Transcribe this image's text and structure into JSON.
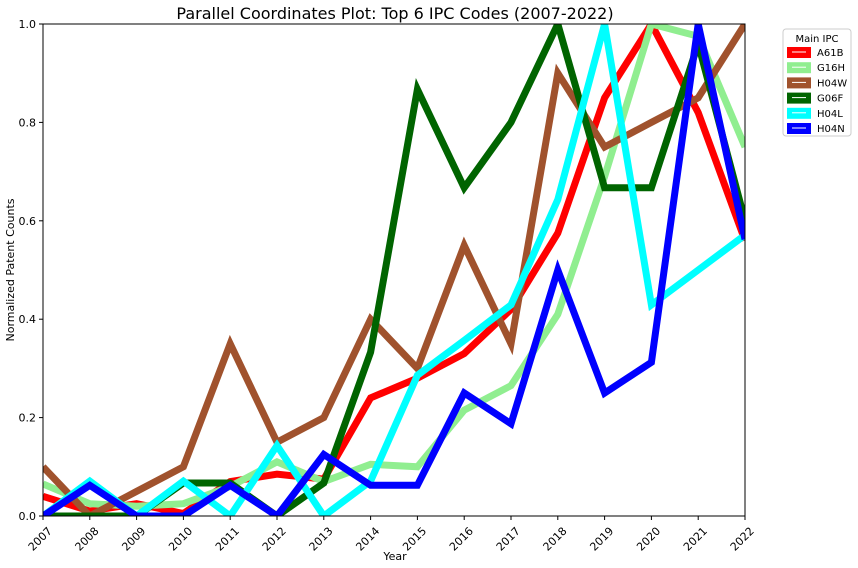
{
  "chart_data": {
    "type": "line",
    "title": "Parallel Coordinates Plot: Top 6 IPC Codes (2007-2022)",
    "xlabel": "Year",
    "ylabel": "Normalized Patent Counts",
    "categories": [
      "2007",
      "2008",
      "2009",
      "2010",
      "2011",
      "2012",
      "2013",
      "2014",
      "2015",
      "2016",
      "2017",
      "2018",
      "2019",
      "2020",
      "2021",
      "2022"
    ],
    "ylim": [
      0,
      1
    ],
    "yticks": [
      "0.0",
      "0.2",
      "0.4",
      "0.6",
      "0.8",
      "1.0"
    ],
    "legend_title": "Main IPC",
    "legend_position": "outside-top-right",
    "grid": false,
    "series": [
      {
        "name": "A61B",
        "color": "#ff0000",
        "values": [
          0.04,
          0.01,
          0.025,
          0.005,
          0.07,
          0.085,
          0.075,
          0.24,
          0.28,
          0.33,
          0.42,
          0.575,
          0.85,
          1.0,
          0.82,
          0.56
        ]
      },
      {
        "name": "G16H",
        "color": "#90ee90",
        "values": [
          0.065,
          0.025,
          0.02,
          0.025,
          0.06,
          0.11,
          0.07,
          0.105,
          0.1,
          0.215,
          0.265,
          0.41,
          0.69,
          1.0,
          0.975,
          0.75
        ]
      },
      {
        "name": "H04W",
        "color": "#a0522d",
        "values": [
          0.1,
          0.0,
          0.05,
          0.1,
          0.35,
          0.15,
          0.2,
          0.4,
          0.3,
          0.55,
          0.35,
          0.9,
          0.75,
          0.8,
          0.85,
          1.0
        ]
      },
      {
        "name": "G06F",
        "color": "#006400",
        "values": [
          0.0,
          0.0,
          0.0,
          0.067,
          0.067,
          0.0,
          0.067,
          0.333,
          0.867,
          0.667,
          0.8,
          1.0,
          0.667,
          0.667,
          0.96,
          0.6
        ]
      },
      {
        "name": "H04L",
        "color": "#00ffff",
        "values": [
          0.0,
          0.071,
          0.0,
          0.071,
          0.0,
          0.143,
          0.0,
          0.071,
          0.286,
          0.357,
          0.429,
          0.643,
          1.0,
          0.429,
          0.5,
          0.571
        ]
      },
      {
        "name": "H04N",
        "color": "#0000ff",
        "values": [
          0.0,
          0.0625,
          0.0,
          0.0,
          0.0625,
          0.0,
          0.125,
          0.0625,
          0.0625,
          0.25,
          0.1875,
          0.5,
          0.25,
          0.3125,
          1.0,
          0.5625
        ]
      }
    ]
  }
}
